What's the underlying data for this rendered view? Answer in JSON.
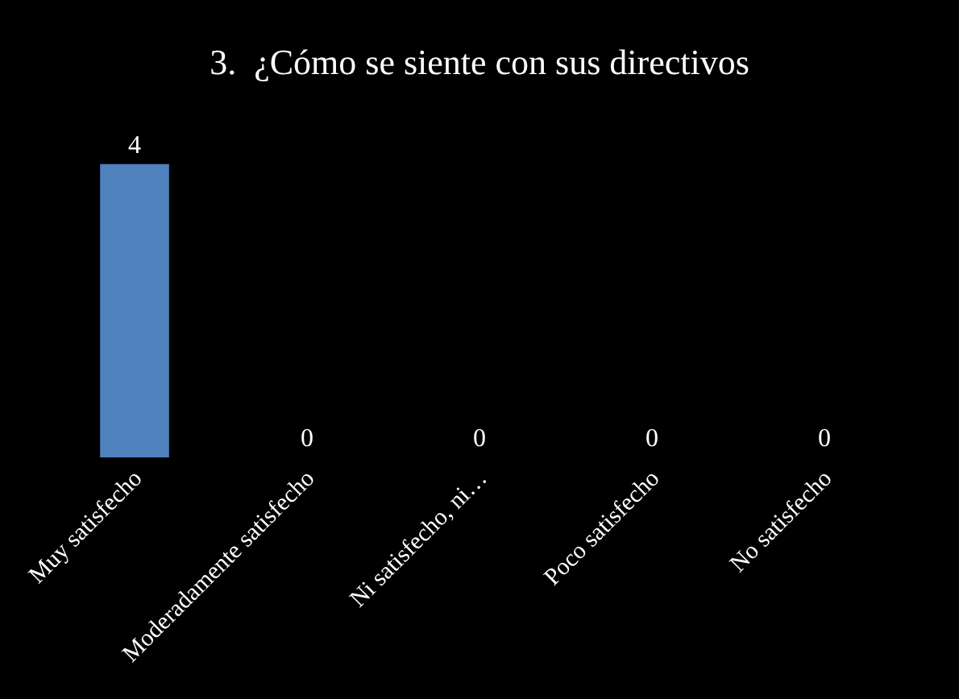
{
  "chart_data": {
    "type": "bar",
    "title": "3.  ¿Cómo se siente con sus directivos",
    "categories": [
      "Muy satisfecho",
      "Moderadamente satisfecho",
      "Ni satisfecho, ni…",
      "Poco satisfecho",
      "No satisfecho"
    ],
    "values": [
      4,
      0,
      0,
      0,
      0
    ],
    "color": "#4f81bd",
    "data_labels": true
  }
}
